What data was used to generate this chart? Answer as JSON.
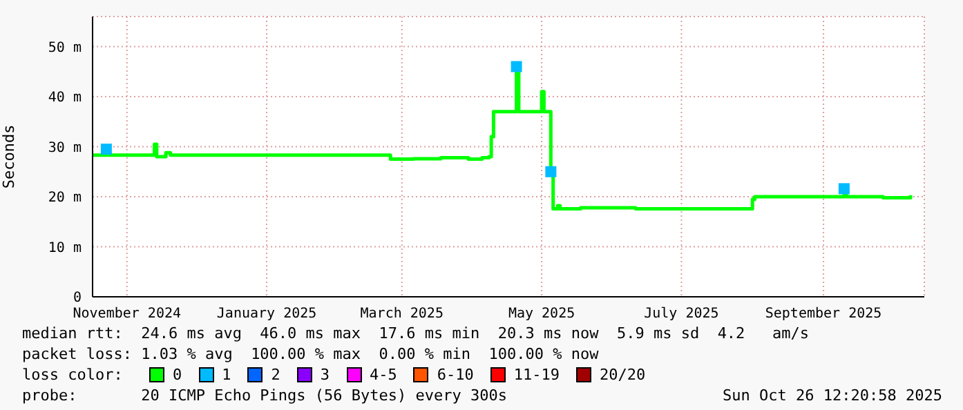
{
  "chart_data": {
    "type": "step",
    "ylabel": "Seconds",
    "xlim": [
      "2024-10-17",
      "2025-10-15"
    ],
    "xticks": [
      {
        "value": "2024-11-01",
        "label": "November 2024"
      },
      {
        "value": "2025-01-01",
        "label": "January 2025"
      },
      {
        "value": "2025-03-01",
        "label": "March 2025"
      },
      {
        "value": "2025-05-01",
        "label": "May 2025"
      },
      {
        "value": "2025-07-01",
        "label": "July 2025"
      },
      {
        "value": "2025-09-01",
        "label": "September 2025"
      }
    ],
    "ylim": [
      0,
      56
    ],
    "yticks": [
      0,
      {
        "value": 10,
        "label": "10 m"
      },
      {
        "value": 20,
        "label": "20 m"
      },
      {
        "value": 30,
        "label": "30 m"
      },
      {
        "value": 40,
        "label": "40 m"
      },
      {
        "value": 50,
        "label": "50 m"
      }
    ],
    "grid": true,
    "legend": "bottom",
    "legend_title": "loss color:",
    "series": [
      {
        "name": "0",
        "color": "#00ff00",
        "x": [
          "2024-10-17",
          "2024-10-23",
          "2024-10-24",
          "2024-11-12",
          "2024-11-13",
          "2024-11-14",
          "2024-11-18",
          "2024-11-20",
          "2025-02-23",
          "2025-02-24",
          "2025-03-06",
          "2025-03-18",
          "2025-03-30",
          "2025-04-05",
          "2025-04-08",
          "2025-04-09",
          "2025-04-10",
          "2025-04-19",
          "2025-04-20",
          "2025-04-21",
          "2025-04-30",
          "2025-05-01",
          "2025-05-02",
          "2025-05-04",
          "2025-05-05",
          "2025-05-06",
          "2025-05-08",
          "2025-05-09",
          "2025-05-18",
          "2025-05-30",
          "2025-06-11",
          "2025-07-05",
          "2025-07-31",
          "2025-08-01",
          "2025-08-02",
          "2025-08-22",
          "2025-09-09",
          "2025-09-10",
          "2025-09-11",
          "2025-09-27",
          "2025-10-09"
        ],
        "values": [
          28.3,
          29.5,
          28.3,
          28.3,
          30.5,
          28,
          28.8,
          28.3,
          28.3,
          27.5,
          27.6,
          27.8,
          27.5,
          27.8,
          28,
          32,
          37,
          37,
          46,
          37,
          37,
          41,
          37,
          37,
          25,
          17.6,
          18.2,
          17.6,
          17.8,
          17.8,
          17.6,
          17.6,
          17.6,
          19.5,
          20,
          20,
          20,
          21.6,
          20,
          19.8,
          20.3
        ]
      },
      {
        "name": "1",
        "color": "#00bbff",
        "type": "scatter",
        "marker": "square",
        "x": [
          "2024-10-23",
          "2025-04-20",
          "2025-05-05",
          "2025-09-10"
        ],
        "values": [
          29.5,
          46,
          25,
          21.6
        ]
      },
      {
        "name": "2",
        "color": "#0066ff"
      },
      {
        "name": "3",
        "color": "#8a00ff"
      },
      {
        "name": "4-5",
        "color": "#ff00ff"
      },
      {
        "name": "6-10",
        "color": "#ff5500"
      },
      {
        "name": "11-19",
        "color": "#ff0000"
      },
      {
        "name": "20/20",
        "color": "#a10000"
      }
    ],
    "annotations": [
      "median rtt:  24.6 ms avg  46.0 ms max  17.6 ms min  20.3 ms now  5.9 ms sd  4.2   am/s",
      "packet loss: 1.03 % avg  100.00 % max  0.00 % min  100.00 % now",
      "probe:       20 ICMP Echo Pings (56 Bytes) every 300s",
      "Sun Oct 26 12:20:58 2025"
    ]
  }
}
